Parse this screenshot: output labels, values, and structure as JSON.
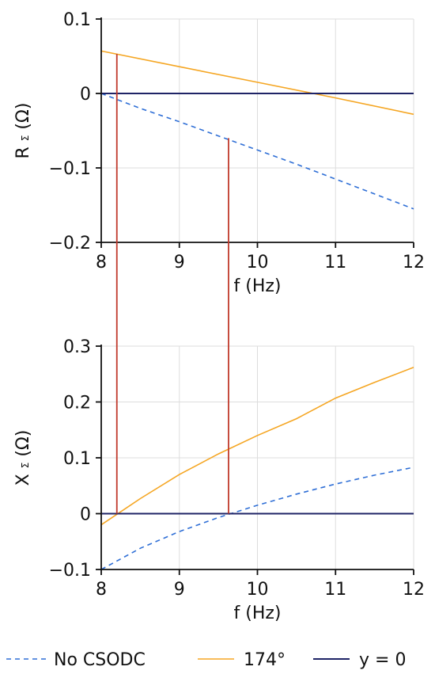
{
  "chart_data": [
    {
      "type": "line",
      "xlabel": "f (Hz)",
      "ylabel": {
        "main": "R",
        "sub": "Σ",
        "unit": "(Ω)"
      },
      "xlim": [
        8,
        12
      ],
      "ylim": [
        -0.2,
        0.1
      ],
      "x_ticks": [
        8,
        9,
        10,
        11,
        12
      ],
      "x_tick_labels": [
        "8",
        "9",
        "10",
        "11",
        "12"
      ],
      "y_ticks": [
        0.1,
        0,
        -0.1,
        -0.2
      ],
      "y_tick_labels": [
        "0.1",
        "0",
        "−0.1",
        "−0.2"
      ],
      "grid": true,
      "series": [
        {
          "key": "no_csodc",
          "x": [
            8,
            8.5,
            9,
            9.5,
            10,
            10.5,
            11,
            11.5,
            12
          ],
          "y": [
            0.0,
            -0.02,
            -0.038,
            -0.057,
            -0.076,
            -0.095,
            -0.115,
            -0.135,
            -0.155
          ]
        },
        {
          "key": "deg174",
          "x": [
            8,
            9,
            10,
            11,
            12
          ],
          "y": [
            0.057,
            0.036,
            0.015,
            -0.006,
            -0.028
          ]
        },
        {
          "key": "zero",
          "x": [
            8,
            12
          ],
          "y": [
            0,
            0
          ]
        }
      ]
    },
    {
      "type": "line",
      "xlabel": "f (Hz)",
      "ylabel": {
        "main": "X",
        "sub": "Σ",
        "unit": "(Ω)"
      },
      "xlim": [
        8,
        12
      ],
      "ylim": [
        -0.1,
        0.3
      ],
      "x_ticks": [
        8,
        9,
        10,
        11,
        12
      ],
      "x_tick_labels": [
        "8",
        "9",
        "10",
        "11",
        "12"
      ],
      "y_ticks": [
        0.3,
        0.2,
        0.1,
        0,
        -0.1
      ],
      "y_tick_labels": [
        "0.3",
        "0.2",
        "0.1",
        "0",
        "−0.1"
      ],
      "grid": true,
      "series": [
        {
          "key": "no_csodc",
          "x": [
            8,
            8.5,
            9,
            9.5,
            10,
            10.5,
            11,
            11.5,
            12
          ],
          "y": [
            -0.1,
            -0.062,
            -0.032,
            -0.007,
            0.015,
            0.035,
            0.053,
            0.069,
            0.083
          ]
        },
        {
          "key": "deg174",
          "x": [
            8,
            8.5,
            9,
            9.5,
            10,
            10.5,
            11,
            11.5,
            12
          ],
          "y": [
            -0.02,
            0.027,
            0.07,
            0.107,
            0.14,
            0.17,
            0.207,
            0.235,
            0.262
          ]
        },
        {
          "key": "zero",
          "x": [
            8,
            12
          ],
          "y": [
            0,
            0
          ]
        }
      ]
    }
  ],
  "markers": [
    {
      "x": 8.2,
      "top_y_panel1": 0.053,
      "bottom_y_panel2": 0
    },
    {
      "x": 9.63,
      "top_y_panel1": -0.06,
      "bottom_y_panel2": 0
    }
  ],
  "series_styles": {
    "no_csodc": {
      "color": "#2f6fd6",
      "dash": "6,5"
    },
    "deg174": {
      "color": "#f5a623",
      "dash": ""
    },
    "zero": {
      "color": "#1f2466",
      "dash": ""
    }
  },
  "marker_color": "#c0392b",
  "legend": [
    {
      "key": "no_csodc",
      "label": "No CSODC"
    },
    {
      "key": "deg174",
      "label": "174°"
    },
    {
      "key": "zero",
      "label": "y = 0"
    }
  ]
}
